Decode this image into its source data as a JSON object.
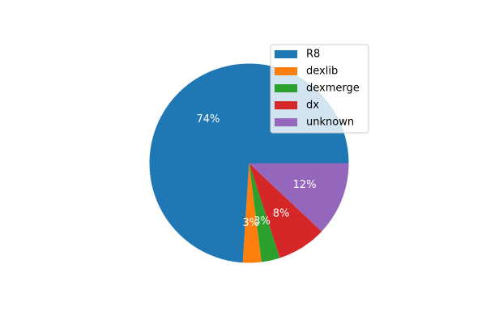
{
  "chart_data": {
    "type": "pie",
    "title": "",
    "slices": [
      {
        "label": "R8",
        "value": 74,
        "pct_label": "74%",
        "color": "#1f77b4"
      },
      {
        "label": "dexlib",
        "value": 3,
        "pct_label": "3%",
        "color": "#ff7f0e"
      },
      {
        "label": "dexmerge",
        "value": 3,
        "pct_label": "3%",
        "color": "#2ca02c"
      },
      {
        "label": "dx",
        "value": 8,
        "pct_label": "8%",
        "color": "#d62728"
      },
      {
        "label": "unknown",
        "value": 12,
        "pct_label": "12%",
        "color": "#9467bd"
      }
    ],
    "legend_position": "top-right"
  }
}
